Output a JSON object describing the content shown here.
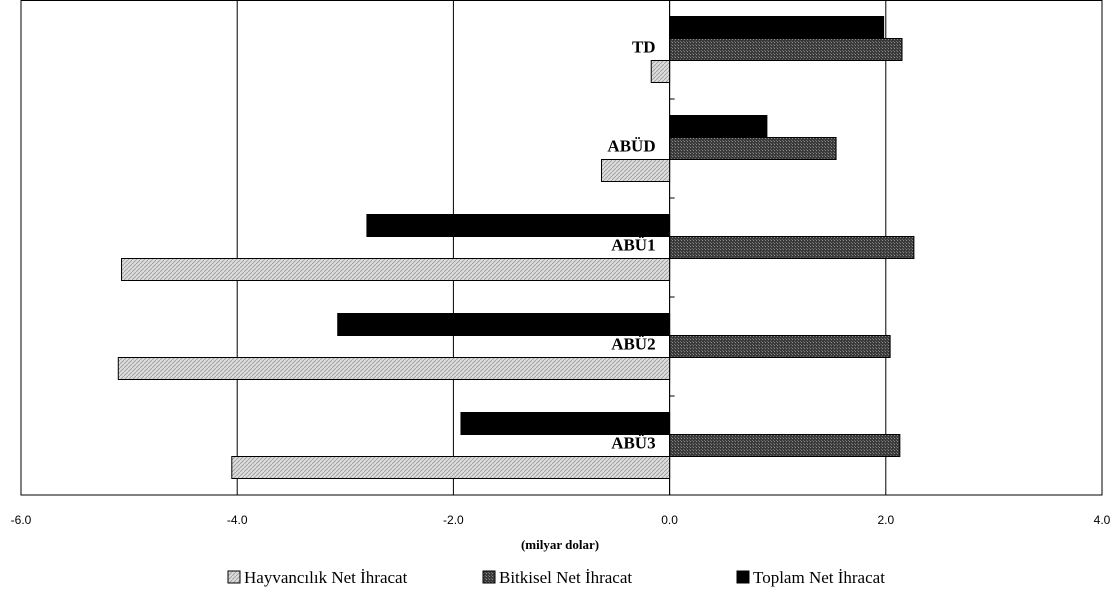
{
  "chart_data": {
    "type": "bar",
    "orientation": "horizontal",
    "categories": [
      "TD",
      "ABÜD",
      "ABÜ1",
      "ABÜ2",
      "ABÜ3"
    ],
    "series": [
      {
        "name": "Toplam Net İhracat",
        "values": [
          1.98,
          0.9,
          -2.8,
          -3.07,
          -1.93
        ],
        "color": "#000000"
      },
      {
        "name": "Bitkisel Net İhracat",
        "values": [
          2.15,
          1.54,
          2.26,
          2.04,
          2.13
        ],
        "color": "#4a4a4a"
      },
      {
        "name": "Hayvancılık Net İhracat",
        "values": [
          -0.17,
          -0.63,
          -5.07,
          -5.1,
          -4.05
        ],
        "color": "#d0d0d0"
      }
    ],
    "xlim": [
      -6.0,
      4.0
    ],
    "xticks": [
      "-6.0",
      "-4.0",
      "-2.0",
      "0.0",
      "2.0",
      "4.0"
    ],
    "xticks_values": [
      -6,
      -4,
      -2,
      0,
      2,
      4
    ],
    "xlabel": "(milyar dolar)",
    "grid": true,
    "legend": {
      "position": "bottom",
      "items": [
        "Hayvancılık Net İhracat",
        "Bitkisel Net İhracat",
        "Toplam Net İhracat"
      ]
    }
  }
}
